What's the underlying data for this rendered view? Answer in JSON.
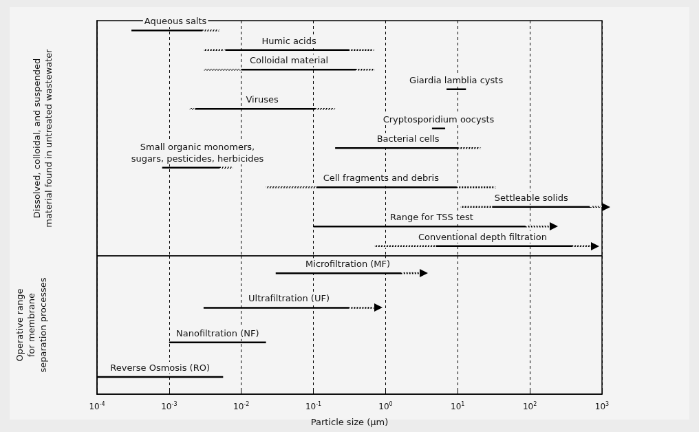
{
  "chart_data": [
    {
      "type": "bar",
      "orientation": "horizontal",
      "log": "x",
      "ylabel": "Dissolved, colloidal, and suspended\nmaterial found in untreated wastewater",
      "categories": [
        "Aqueous salts",
        "Humic acids",
        "Colloidal material",
        "Giardia lamblia cysts",
        "Viruses",
        "Cryptosporidium oocysts",
        "Bacterial cells",
        "Small organic monomers,\nsugars, pesticides, herbicides",
        "Cell fragments and debris",
        "Settleable solids",
        "Range for TSS test",
        "Conventional depth filtration"
      ],
      "xlim": [
        0.0001,
        1000
      ],
      "xticks": [
        {
          "value": 0.0001,
          "label": null
        },
        {
          "value": 0.001,
          "label": null
        },
        {
          "value": 0.01,
          "label": null
        },
        {
          "value": 0.1,
          "label": null
        },
        {
          "value": 1,
          "label": null
        },
        {
          "value": 10,
          "label": null
        },
        {
          "value": 100,
          "label": null
        },
        {
          "value": 1000,
          "label": null
        }
      ],
      "grid": "x",
      "tick_labels": false,
      "series": [
        {
          "color": "#000000",
          "line_style": "dotted",
          "base": [
            null,
            0.003,
            0.003,
            null,
            0.0019,
            null,
            null,
            null,
            0.022,
            11,
            null,
            0.7
          ],
          "values": [
            null,
            0.003,
            0.007,
            null,
            0.0004,
            null,
            null,
            null,
            0.088,
            19,
            null,
            4.3
          ]
        },
        {
          "color": "#000000",
          "line_style": "solid",
          "base": [
            0.0003,
            0.006,
            0.01,
            7,
            0.0023,
            4.4,
            0.2,
            0.0008,
            0.11,
            30,
            0.1,
            5
          ],
          "values": [
            0.0027,
            0.314,
            0.39,
            6,
            0.1077,
            2.3,
            10.3,
            0.0044,
            9.89,
            670,
            89.9,
            395
          ]
        },
        {
          "color": "#000000",
          "line_style": "dotted",
          "base": [
            0.003,
            0.32,
            0.4,
            null,
            0.11,
            null,
            10.5,
            0.0052,
            10,
            null,
            null,
            null
          ],
          "values": [
            0.002,
            0.38,
            0.3,
            null,
            0.09,
            null,
            10.5,
            0.0024,
            24,
            null,
            null,
            null
          ]
        },
        {
          "color": "#000000",
          "line_style": "dotted",
          "marker": "triangle",
          "base": [
            null,
            null,
            null,
            null,
            null,
            null,
            null,
            null,
            null,
            700,
            90,
            400
          ],
          "values": [
            null,
            null,
            null,
            null,
            null,
            null,
            null,
            null,
            null,
            300,
            100,
            300
          ]
        }
      ]
    },
    {
      "type": "bar",
      "orientation": "horizontal",
      "log": "x",
      "ylabel": "Operative range\nfor membrane\nseparation processes",
      "xlabel": "Particle size (μm)",
      "categories": [
        "Microfiltration (MF)",
        "Ultrafiltration (UF)",
        "Nanofiltration (NF)",
        "Reverse Osmosis (RO)"
      ],
      "xlim": [
        0.0001,
        1000
      ],
      "xticks": [
        {
          "value": 0.0001,
          "label": "10$^{-4}$"
        },
        {
          "value": 0.001,
          "label": "10$^{-3}$"
        },
        {
          "value": 0.01,
          "label": "10$^{-2}$"
        },
        {
          "value": 0.1,
          "label": "10$^{-1}$"
        },
        {
          "value": 1,
          "label": "10$^{0}$"
        },
        {
          "value": 10,
          "label": "10$^{1}$"
        },
        {
          "value": 100,
          "label": "10$^{2}$"
        },
        {
          "value": 1000,
          "label": "10$^{3}$"
        }
      ],
      "grid": "x",
      "tick_labels": "x",
      "series": [
        {
          "color": "#000000",
          "line_style": "solid",
          "base": [
            0.03,
            0.003,
            0.001,
            0.0001
          ],
          "values": [
            1.67,
            0.317,
            0.021,
            0.0055
          ]
        },
        {
          "color": "#000000",
          "line_style": "dotted",
          "marker": "triangle",
          "base": [
            1.7,
            0.32,
            null,
            null
          ],
          "values": [
            1.3,
            0.38,
            null,
            null
          ]
        }
      ]
    }
  ]
}
